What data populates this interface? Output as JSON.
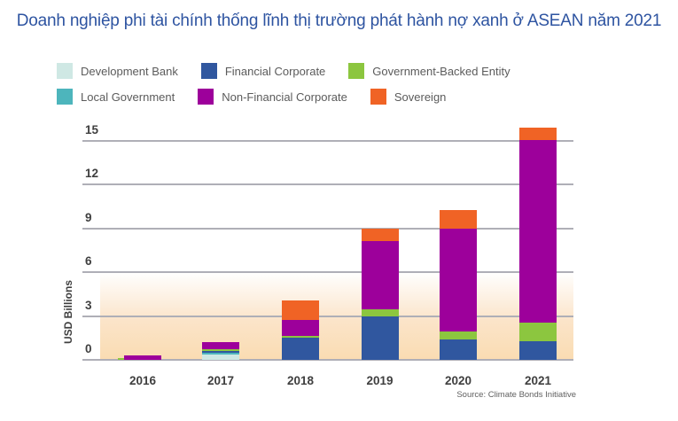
{
  "title": "Doanh nghiệp phi tài chính thống lĩnh thị trường phát hành nợ xanh ở ASEAN năm 2021",
  "colors": {
    "title_blue": "#2E54A1",
    "axis_text": "#3F3F3F",
    "legend_text": "#5B5B5B",
    "gridline": "#AFAFB7",
    "gradient_bottom": "#FADCB2",
    "development_bank": "#CFE8E4",
    "financial_corporate": "#30579F",
    "government_backed_entity": "#8CC63F",
    "local_government": "#4DB5BC",
    "non_financial_corporate": "#9D009B",
    "sovereign": "#F06325"
  },
  "legend": {
    "items": [
      {
        "label": "Development Bank",
        "color": "#CFE8E4"
      },
      {
        "label": "Financial Corporate",
        "color": "#30579F"
      },
      {
        "label": "Government-Backed Entity",
        "color": "#8CC63F"
      },
      {
        "label": "Local Government",
        "color": "#4DB5BC"
      },
      {
        "label": "Non-Financial Corporate",
        "color": "#9D009B"
      },
      {
        "label": "Sovereign",
        "color": "#F06325"
      }
    ]
  },
  "chart_data": {
    "type": "bar",
    "stacked": true,
    "title": "Doanh nghiệp phi tài chính thống lĩnh thị trường phát hành nợ xanh ở ASEAN năm 2021",
    "xlabel": "",
    "ylabel": "USD Billions",
    "categories": [
      "2016",
      "2017",
      "2018",
      "2019",
      "2020",
      "2021"
    ],
    "y_ticks": [
      0,
      3,
      6,
      9,
      12,
      15
    ],
    "ylim": [
      0,
      16.1
    ],
    "grid": true,
    "legend_position": "top",
    "series": [
      {
        "name": "Development Bank",
        "color": "#CFE8E4",
        "values": [
          0,
          0.35,
          0,
          0,
          0,
          0
        ]
      },
      {
        "name": "Local Government",
        "color": "#4DB5BC",
        "values": [
          0,
          0.12,
          0,
          0,
          0,
          0
        ]
      },
      {
        "name": "Financial Corporate",
        "color": "#30579F",
        "values": [
          0,
          0.12,
          1.5,
          3.0,
          1.4,
          1.25
        ]
      },
      {
        "name": "Government-Backed Entity",
        "color": "#8CC63F",
        "values": [
          0.07,
          0.15,
          0.15,
          0.45,
          0.55,
          1.3
        ]
      },
      {
        "name": "Non-Financial Corporate",
        "color": "#9D009B",
        "values": [
          0.3,
          0.45,
          1.1,
          4.65,
          7.0,
          12.5
        ]
      },
      {
        "name": "Sovereign",
        "color": "#F06325",
        "values": [
          0,
          0,
          1.3,
          0.9,
          1.3,
          0.85
        ]
      }
    ],
    "totals": [
      0.37,
      1.19,
      4.05,
      9.0,
      10.25,
      15.9
    ],
    "offset_sliver": {
      "category": "2016",
      "series": "Government-Backed Entity",
      "note": "tiny green sliver protruding left of the 2016 bar at the baseline"
    },
    "source": "Source: Climate Bonds Initiative"
  }
}
